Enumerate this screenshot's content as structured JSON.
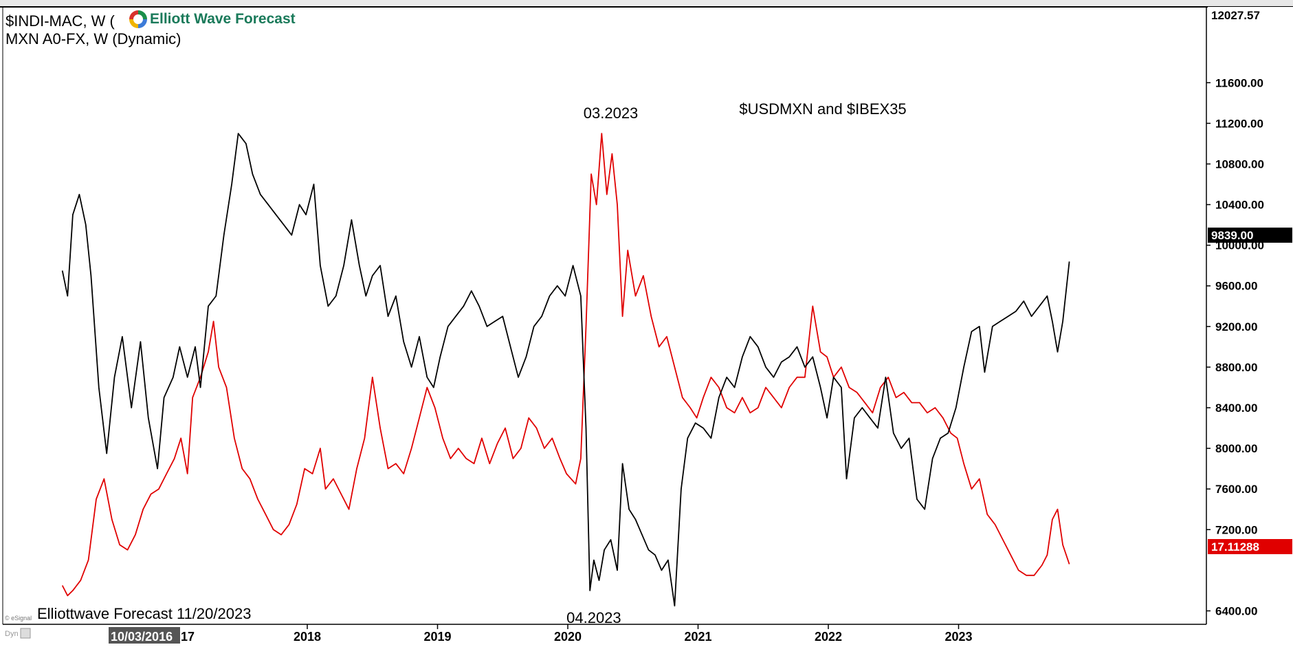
{
  "header": {
    "line1": "$INDI-MAC, W (",
    "line2": "MXN A0-FX, W (Dynamic)",
    "brand": "Elliott Wave Forecast"
  },
  "footer": {
    "watermark": "Elliottwave Forecast  11/20/2023",
    "cursor_date": "10/03/2016",
    "cursor_suffix": "17",
    "esignal": "© eSignal",
    "dyn": "Dyn"
  },
  "colors": {
    "ibex": "#000000",
    "usdmxn": "#e00000",
    "price_tag_ibex": "#000000",
    "price_tag_usdmxn": "#e00000"
  },
  "chart_data": {
    "type": "line",
    "title": "$USDMXN and $IBEX35",
    "x_ticks": [
      "2018",
      "2019",
      "2020",
      "2021",
      "2022",
      "2023"
    ],
    "y_ticks": [
      "11600.00",
      "11200.00",
      "10800.00",
      "10400.00",
      "10000.00",
      "9600.00",
      "9200.00",
      "8800.00",
      "8400.00",
      "8000.00",
      "7600.00",
      "7200.00",
      "6400.00"
    ],
    "y_top_label": "12027.57",
    "ylim": [
      6200,
      12100
    ],
    "xlim": [
      2016.1,
      2024.6
    ],
    "annotations": [
      {
        "text": "03.2023",
        "x": 2020.33,
        "y": 11250
      },
      {
        "text": "04.2023",
        "x": 2020.2,
        "y": 6280
      }
    ],
    "last_values": [
      {
        "series": "IBEX",
        "label": "9839.00"
      },
      {
        "series": "USDMXN",
        "label": "17.11288"
      }
    ],
    "series": [
      {
        "key": "IBEX",
        "points": [
          [
            2016.12,
            9750
          ],
          [
            2016.16,
            9500
          ],
          [
            2016.2,
            10300
          ],
          [
            2016.25,
            10500
          ],
          [
            2016.3,
            10200
          ],
          [
            2016.34,
            9700
          ],
          [
            2016.4,
            8600
          ],
          [
            2016.46,
            7950
          ],
          [
            2016.52,
            8700
          ],
          [
            2016.58,
            9100
          ],
          [
            2016.65,
            8400
          ],
          [
            2016.72,
            9050
          ],
          [
            2016.78,
            8300
          ],
          [
            2016.85,
            7800
          ],
          [
            2016.9,
            8500
          ],
          [
            2016.97,
            8700
          ],
          [
            2017.02,
            9000
          ],
          [
            2017.08,
            8700
          ],
          [
            2017.14,
            9000
          ],
          [
            2017.18,
            8600
          ],
          [
            2017.24,
            9400
          ],
          [
            2017.3,
            9500
          ],
          [
            2017.36,
            10100
          ],
          [
            2017.42,
            10600
          ],
          [
            2017.47,
            11100
          ],
          [
            2017.53,
            11000
          ],
          [
            2017.58,
            10700
          ],
          [
            2017.64,
            10500
          ],
          [
            2017.7,
            10400
          ],
          [
            2017.76,
            10300
          ],
          [
            2017.82,
            10200
          ],
          [
            2017.88,
            10100
          ],
          [
            2017.94,
            10400
          ],
          [
            2017.99,
            10300
          ],
          [
            2018.05,
            10600
          ],
          [
            2018.1,
            9800
          ],
          [
            2018.16,
            9400
          ],
          [
            2018.22,
            9500
          ],
          [
            2018.28,
            9800
          ],
          [
            2018.34,
            10250
          ],
          [
            2018.4,
            9800
          ],
          [
            2018.45,
            9500
          ],
          [
            2018.5,
            9700
          ],
          [
            2018.56,
            9800
          ],
          [
            2018.62,
            9300
          ],
          [
            2018.68,
            9500
          ],
          [
            2018.74,
            9050
          ],
          [
            2018.8,
            8800
          ],
          [
            2018.86,
            9100
          ],
          [
            2018.92,
            8700
          ],
          [
            2018.97,
            8600
          ],
          [
            2019.02,
            8900
          ],
          [
            2019.08,
            9200
          ],
          [
            2019.14,
            9300
          ],
          [
            2019.2,
            9400
          ],
          [
            2019.26,
            9550
          ],
          [
            2019.32,
            9400
          ],
          [
            2019.38,
            9200
          ],
          [
            2019.44,
            9250
          ],
          [
            2019.5,
            9300
          ],
          [
            2019.56,
            9000
          ],
          [
            2019.62,
            8700
          ],
          [
            2019.68,
            8900
          ],
          [
            2019.74,
            9200
          ],
          [
            2019.8,
            9300
          ],
          [
            2019.86,
            9500
          ],
          [
            2019.92,
            9600
          ],
          [
            2019.98,
            9500
          ],
          [
            2020.04,
            9800
          ],
          [
            2020.1,
            9500
          ],
          [
            2020.14,
            8200
          ],
          [
            2020.17,
            6600
          ],
          [
            2020.2,
            6900
          ],
          [
            2020.24,
            6700
          ],
          [
            2020.28,
            7000
          ],
          [
            2020.33,
            7100
          ],
          [
            2020.38,
            6800
          ],
          [
            2020.42,
            7850
          ],
          [
            2020.47,
            7400
          ],
          [
            2020.52,
            7300
          ],
          [
            2020.57,
            7150
          ],
          [
            2020.62,
            7000
          ],
          [
            2020.67,
            6950
          ],
          [
            2020.72,
            6800
          ],
          [
            2020.77,
            6900
          ],
          [
            2020.82,
            6450
          ],
          [
            2020.87,
            7600
          ],
          [
            2020.92,
            8100
          ],
          [
            2020.98,
            8250
          ],
          [
            2021.04,
            8200
          ],
          [
            2021.1,
            8100
          ],
          [
            2021.16,
            8500
          ],
          [
            2021.22,
            8700
          ],
          [
            2021.28,
            8600
          ],
          [
            2021.34,
            8900
          ],
          [
            2021.4,
            9100
          ],
          [
            2021.46,
            9000
          ],
          [
            2021.52,
            8800
          ],
          [
            2021.58,
            8700
          ],
          [
            2021.64,
            8850
          ],
          [
            2021.7,
            8900
          ],
          [
            2021.76,
            9000
          ],
          [
            2021.82,
            8800
          ],
          [
            2021.88,
            8900
          ],
          [
            2021.94,
            8600
          ],
          [
            2021.99,
            8300
          ],
          [
            2022.04,
            8700
          ],
          [
            2022.1,
            8600
          ],
          [
            2022.14,
            7700
          ],
          [
            2022.2,
            8300
          ],
          [
            2022.26,
            8400
          ],
          [
            2022.32,
            8300
          ],
          [
            2022.38,
            8200
          ],
          [
            2022.44,
            8700
          ],
          [
            2022.5,
            8150
          ],
          [
            2022.56,
            8000
          ],
          [
            2022.62,
            8100
          ],
          [
            2022.68,
            7500
          ],
          [
            2022.74,
            7400
          ],
          [
            2022.8,
            7900
          ],
          [
            2022.86,
            8100
          ],
          [
            2022.92,
            8150
          ],
          [
            2022.98,
            8400
          ],
          [
            2023.04,
            8800
          ],
          [
            2023.1,
            9150
          ],
          [
            2023.16,
            9200
          ],
          [
            2023.2,
            8750
          ],
          [
            2023.26,
            9200
          ],
          [
            2023.32,
            9250
          ],
          [
            2023.38,
            9300
          ],
          [
            2023.44,
            9350
          ],
          [
            2023.5,
            9450
          ],
          [
            2023.56,
            9300
          ],
          [
            2023.62,
            9400
          ],
          [
            2023.68,
            9500
          ],
          [
            2023.72,
            9250
          ],
          [
            2023.76,
            8950
          ],
          [
            2023.8,
            9250
          ],
          [
            2023.85,
            9839
          ]
        ]
      },
      {
        "key": "USDMXN",
        "points": [
          [
            2016.12,
            6650
          ],
          [
            2016.16,
            6550
          ],
          [
            2016.2,
            6600
          ],
          [
            2016.26,
            6700
          ],
          [
            2016.32,
            6900
          ],
          [
            2016.38,
            7500
          ],
          [
            2016.44,
            7700
          ],
          [
            2016.5,
            7300
          ],
          [
            2016.56,
            7050
          ],
          [
            2016.62,
            7000
          ],
          [
            2016.68,
            7150
          ],
          [
            2016.74,
            7400
          ],
          [
            2016.8,
            7550
          ],
          [
            2016.86,
            7600
          ],
          [
            2016.92,
            7750
          ],
          [
            2016.98,
            7900
          ],
          [
            2017.03,
            8100
          ],
          [
            2017.08,
            7750
          ],
          [
            2017.12,
            8500
          ],
          [
            2017.18,
            8700
          ],
          [
            2017.24,
            8950
          ],
          [
            2017.28,
            9250
          ],
          [
            2017.32,
            8800
          ],
          [
            2017.38,
            8600
          ],
          [
            2017.44,
            8100
          ],
          [
            2017.5,
            7800
          ],
          [
            2017.56,
            7700
          ],
          [
            2017.62,
            7500
          ],
          [
            2017.68,
            7350
          ],
          [
            2017.74,
            7200
          ],
          [
            2017.8,
            7150
          ],
          [
            2017.86,
            7250
          ],
          [
            2017.92,
            7450
          ],
          [
            2017.98,
            7800
          ],
          [
            2018.04,
            7750
          ],
          [
            2018.1,
            8000
          ],
          [
            2018.14,
            7600
          ],
          [
            2018.2,
            7700
          ],
          [
            2018.26,
            7550
          ],
          [
            2018.32,
            7400
          ],
          [
            2018.38,
            7800
          ],
          [
            2018.44,
            8100
          ],
          [
            2018.5,
            8700
          ],
          [
            2018.56,
            8200
          ],
          [
            2018.62,
            7800
          ],
          [
            2018.68,
            7850
          ],
          [
            2018.74,
            7750
          ],
          [
            2018.8,
            8000
          ],
          [
            2018.86,
            8300
          ],
          [
            2018.92,
            8600
          ],
          [
            2018.98,
            8400
          ],
          [
            2019.04,
            8100
          ],
          [
            2019.1,
            7900
          ],
          [
            2019.16,
            8000
          ],
          [
            2019.22,
            7900
          ],
          [
            2019.28,
            7850
          ],
          [
            2019.34,
            8100
          ],
          [
            2019.4,
            7850
          ],
          [
            2019.46,
            8050
          ],
          [
            2019.52,
            8200
          ],
          [
            2019.58,
            7900
          ],
          [
            2019.64,
            8000
          ],
          [
            2019.7,
            8300
          ],
          [
            2019.76,
            8200
          ],
          [
            2019.82,
            8000
          ],
          [
            2019.88,
            8100
          ],
          [
            2019.94,
            7900
          ],
          [
            2019.99,
            7750
          ],
          [
            2020.06,
            7650
          ],
          [
            2020.1,
            7900
          ],
          [
            2020.14,
            9200
          ],
          [
            2020.18,
            10700
          ],
          [
            2020.22,
            10400
          ],
          [
            2020.26,
            11100
          ],
          [
            2020.3,
            10500
          ],
          [
            2020.34,
            10900
          ],
          [
            2020.38,
            10400
          ],
          [
            2020.42,
            9300
          ],
          [
            2020.46,
            9950
          ],
          [
            2020.52,
            9500
          ],
          [
            2020.58,
            9700
          ],
          [
            2020.64,
            9300
          ],
          [
            2020.7,
            9000
          ],
          [
            2020.76,
            9100
          ],
          [
            2020.82,
            8800
          ],
          [
            2020.88,
            8500
          ],
          [
            2020.94,
            8400
          ],
          [
            2020.99,
            8300
          ],
          [
            2021.04,
            8500
          ],
          [
            2021.1,
            8700
          ],
          [
            2021.16,
            8600
          ],
          [
            2021.22,
            8400
          ],
          [
            2021.28,
            8350
          ],
          [
            2021.34,
            8500
          ],
          [
            2021.4,
            8350
          ],
          [
            2021.46,
            8400
          ],
          [
            2021.52,
            8600
          ],
          [
            2021.58,
            8500
          ],
          [
            2021.64,
            8400
          ],
          [
            2021.7,
            8600
          ],
          [
            2021.76,
            8700
          ],
          [
            2021.82,
            8700
          ],
          [
            2021.88,
            9400
          ],
          [
            2021.94,
            8950
          ],
          [
            2021.99,
            8900
          ],
          [
            2022.04,
            8700
          ],
          [
            2022.1,
            8800
          ],
          [
            2022.16,
            8600
          ],
          [
            2022.22,
            8550
          ],
          [
            2022.28,
            8450
          ],
          [
            2022.34,
            8350
          ],
          [
            2022.4,
            8600
          ],
          [
            2022.46,
            8700
          ],
          [
            2022.52,
            8500
          ],
          [
            2022.58,
            8550
          ],
          [
            2022.64,
            8450
          ],
          [
            2022.7,
            8450
          ],
          [
            2022.76,
            8350
          ],
          [
            2022.82,
            8400
          ],
          [
            2022.88,
            8300
          ],
          [
            2022.94,
            8150
          ],
          [
            2022.99,
            8100
          ],
          [
            2023.04,
            7850
          ],
          [
            2023.1,
            7600
          ],
          [
            2023.16,
            7700
          ],
          [
            2023.22,
            7350
          ],
          [
            2023.28,
            7250
          ],
          [
            2023.34,
            7100
          ],
          [
            2023.4,
            6950
          ],
          [
            2023.46,
            6800
          ],
          [
            2023.52,
            6750
          ],
          [
            2023.58,
            6750
          ],
          [
            2023.64,
            6850
          ],
          [
            2023.68,
            6950
          ],
          [
            2023.72,
            7300
          ],
          [
            2023.76,
            7400
          ],
          [
            2023.8,
            7050
          ],
          [
            2023.85,
            6860
          ]
        ]
      }
    ]
  }
}
